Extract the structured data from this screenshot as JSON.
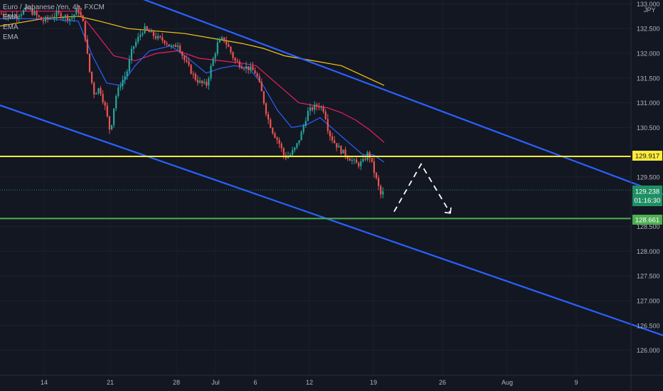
{
  "legend": {
    "title": "Euro / Japanese Yen, 4h, FXCM",
    "indicators": [
      "EMA",
      "EMA",
      "EMA"
    ]
  },
  "price_axis": {
    "currency": "JPY",
    "ticks": [
      "133.000",
      "132.500",
      "132.000",
      "131.500",
      "131.000",
      "130.500",
      "129.500",
      "128.500",
      "128.000",
      "127.500",
      "127.000",
      "126.500",
      "126.000"
    ]
  },
  "time_axis": {
    "ticks": [
      "14",
      "21",
      "28",
      "Jul",
      "6",
      "12",
      "19",
      "26",
      "Aug",
      "9"
    ]
  },
  "price_labels": {
    "resistance": "129.917",
    "current": "129.238",
    "countdown": "01:16:30",
    "support": "128.661"
  },
  "colors": {
    "background": "#131722",
    "up": "#26a69a",
    "down": "#ef5350",
    "ema_fast": "#2962ff",
    "ema_mid": "#e91e63",
    "ema_slow": "#f5c518",
    "channel": "#2962ff",
    "resistance": "#ffeb3b",
    "support": "#4caf50",
    "projection": "#ffffff"
  },
  "chart_data": {
    "type": "candlestick",
    "symbol": "Euro / Japanese Yen",
    "timeframe": "4h",
    "source": "FXCM",
    "y_range": [
      125.9,
      133.05
    ],
    "horizontal_levels": [
      {
        "label": "resistance",
        "price": 129.917
      },
      {
        "label": "support",
        "price": 128.661
      },
      {
        "label": "current",
        "price": 129.238
      }
    ],
    "price_path": [
      [
        0,
        132.8
      ],
      [
        20,
        132.75
      ],
      [
        40,
        132.9
      ],
      [
        60,
        132.65
      ],
      [
        80,
        132.8
      ],
      [
        100,
        132.7
      ],
      [
        110,
        132.9
      ],
      [
        118,
        132.55
      ],
      [
        125,
        131.7
      ],
      [
        132,
        131.2
      ],
      [
        140,
        131.3
      ],
      [
        148,
        130.9
      ],
      [
        155,
        130.4
      ],
      [
        162,
        131.1
      ],
      [
        170,
        131.4
      ],
      [
        178,
        131.6
      ],
      [
        186,
        132.1
      ],
      [
        194,
        132.3
      ],
      [
        202,
        132.5
      ],
      [
        212,
        132.4
      ],
      [
        222,
        132.3
      ],
      [
        232,
        132.25
      ],
      [
        242,
        132.1
      ],
      [
        250,
        132.2
      ],
      [
        258,
        131.9
      ],
      [
        266,
        131.7
      ],
      [
        274,
        131.5
      ],
      [
        282,
        131.4
      ],
      [
        290,
        131.35
      ],
      [
        298,
        131.8
      ],
      [
        306,
        132.2
      ],
      [
        314,
        132.3
      ],
      [
        322,
        132.1
      ],
      [
        330,
        131.85
      ],
      [
        340,
        131.75
      ],
      [
        350,
        131.7
      ],
      [
        360,
        131.6
      ],
      [
        368,
        131.2
      ],
      [
        376,
        130.7
      ],
      [
        384,
        130.4
      ],
      [
        392,
        130.2
      ],
      [
        400,
        129.9
      ],
      [
        408,
        129.95
      ],
      [
        416,
        130.1
      ],
      [
        424,
        130.4
      ],
      [
        432,
        130.8
      ],
      [
        440,
        130.9
      ],
      [
        448,
        130.95
      ],
      [
        456,
        130.85
      ],
      [
        462,
        130.4
      ],
      [
        470,
        130.2
      ],
      [
        478,
        130.05
      ],
      [
        486,
        129.95
      ],
      [
        494,
        129.85
      ],
      [
        502,
        129.75
      ],
      [
        510,
        129.8
      ],
      [
        518,
        130.0
      ],
      [
        524,
        129.7
      ],
      [
        530,
        129.4
      ],
      [
        536,
        129.1
      ],
      [
        540,
        129.238
      ]
    ],
    "ema_fast": [
      [
        0,
        132.7
      ],
      [
        60,
        132.7
      ],
      [
        110,
        132.65
      ],
      [
        130,
        131.95
      ],
      [
        150,
        131.4
      ],
      [
        170,
        131.35
      ],
      [
        190,
        131.75
      ],
      [
        210,
        132.05
      ],
      [
        240,
        132.15
      ],
      [
        260,
        131.95
      ],
      [
        290,
        131.6
      ],
      [
        310,
        131.7
      ],
      [
        330,
        131.75
      ],
      [
        350,
        131.7
      ],
      [
        370,
        131.35
      ],
      [
        390,
        130.85
      ],
      [
        410,
        130.5
      ],
      [
        430,
        130.55
      ],
      [
        450,
        130.7
      ],
      [
        470,
        130.45
      ],
      [
        490,
        130.2
      ],
      [
        510,
        129.95
      ],
      [
        525,
        129.95
      ],
      [
        540,
        129.8
      ]
    ],
    "ema_mid": [
      [
        0,
        132.85
      ],
      [
        80,
        132.85
      ],
      [
        110,
        132.85
      ],
      [
        130,
        132.5
      ],
      [
        160,
        131.95
      ],
      [
        190,
        131.85
      ],
      [
        220,
        132.0
      ],
      [
        250,
        132.05
      ],
      [
        280,
        131.9
      ],
      [
        310,
        131.85
      ],
      [
        340,
        131.8
      ],
      [
        360,
        131.75
      ],
      [
        380,
        131.5
      ],
      [
        400,
        131.25
      ],
      [
        420,
        131.0
      ],
      [
        440,
        130.95
      ],
      [
        460,
        130.9
      ],
      [
        480,
        130.8
      ],
      [
        500,
        130.65
      ],
      [
        520,
        130.45
      ],
      [
        540,
        130.2
      ]
    ],
    "ema_slow": [
      [
        0,
        132.55
      ],
      [
        60,
        132.7
      ],
      [
        110,
        132.75
      ],
      [
        140,
        132.65
      ],
      [
        180,
        132.5
      ],
      [
        220,
        132.45
      ],
      [
        260,
        132.4
      ],
      [
        300,
        132.3
      ],
      [
        340,
        132.2
      ],
      [
        370,
        132.1
      ],
      [
        400,
        131.95
      ],
      [
        440,
        131.85
      ],
      [
        480,
        131.75
      ],
      [
        510,
        131.55
      ],
      [
        540,
        131.35
      ]
    ],
    "channel_upper": [
      [
        200,
        133.1
      ],
      [
        932,
        129.15
      ]
    ],
    "channel_lower": [
      [
        0,
        130.95
      ],
      [
        932,
        126.3
      ]
    ],
    "projection": [
      [
        554,
        128.8
      ],
      [
        592,
        129.76
      ],
      [
        633,
        128.77
      ]
    ]
  }
}
